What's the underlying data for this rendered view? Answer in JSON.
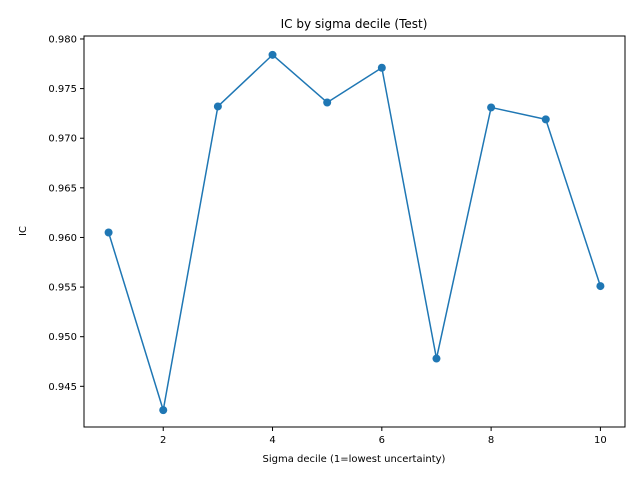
{
  "chart_data": {
    "type": "line",
    "title": "IC by sigma decile (Test)",
    "xlabel": "Sigma decile (1=lowest uncertainty)",
    "ylabel": "IC",
    "x": [
      1,
      2,
      3,
      4,
      5,
      6,
      7,
      8,
      9,
      10
    ],
    "series": [
      {
        "values": [
          0.9605,
          0.9426,
          0.9732,
          0.9784,
          0.9736,
          0.9771,
          0.9478,
          0.9731,
          0.9719,
          0.9551
        ],
        "color": "#1f77b4",
        "marker": "circle"
      }
    ],
    "xlim": [
      0.55,
      10.45
    ],
    "ylim": [
      0.9409,
      0.9803
    ],
    "xticks": [
      2,
      4,
      6,
      8,
      10
    ],
    "yticks": [
      0.945,
      0.95,
      0.955,
      0.96,
      0.965,
      0.97,
      0.975,
      0.98
    ],
    "xtick_labels": [
      "2",
      "4",
      "6",
      "8",
      "10"
    ],
    "ytick_labels": [
      "0.945",
      "0.950",
      "0.955",
      "0.960",
      "0.965",
      "0.970",
      "0.975",
      "0.980"
    ],
    "grid": false,
    "legend": "none"
  }
}
